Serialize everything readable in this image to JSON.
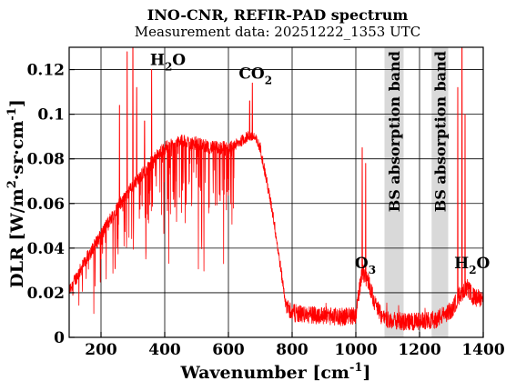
{
  "chart_data": {
    "type": "line",
    "title": "INO-CNR, REFIR-PAD spectrum",
    "subtitle": "Measurement data: 20251222_1353 UTC",
    "xlabel": "Wavenumber [cm",
    "xlabel_sup": "-1",
    "xlabel_end": "]",
    "ylabel": "DLR [W/m",
    "ylabel_sup1": "2",
    "ylabel_mid": "·sr·cm",
    "ylabel_sup2": "-1",
    "ylabel_end": "]",
    "xlim": [
      100,
      1400
    ],
    "ylim": [
      0,
      0.13
    ],
    "grid": true,
    "x_ticks": [
      200,
      400,
      600,
      800,
      1000,
      1200,
      1400
    ],
    "y_ticks": [
      0,
      0.02,
      0.04,
      0.06,
      0.08,
      0.1,
      0.12
    ],
    "y_tick_labels": [
      "0",
      "0.02",
      "0.04",
      "0.06",
      "0.08",
      "0.1",
      "0.12"
    ],
    "series": [
      {
        "color": "#ff0000",
        "envelope": [
          [
            100,
            0.021
          ],
          [
            150,
            0.034
          ],
          [
            200,
            0.046
          ],
          [
            250,
            0.058
          ],
          [
            300,
            0.068
          ],
          [
            350,
            0.077
          ],
          [
            400,
            0.085
          ],
          [
            450,
            0.088
          ],
          [
            500,
            0.087
          ],
          [
            550,
            0.085
          ],
          [
            600,
            0.085
          ],
          [
            620,
            0.086
          ],
          [
            640,
            0.088
          ],
          [
            660,
            0.09
          ],
          [
            680,
            0.09
          ],
          [
            700,
            0.085
          ],
          [
            720,
            0.07
          ],
          [
            740,
            0.055
          ],
          [
            760,
            0.035
          ],
          [
            780,
            0.015
          ],
          [
            800,
            0.011
          ],
          [
            850,
            0.01
          ],
          [
            900,
            0.01
          ],
          [
            950,
            0.009
          ],
          [
            1000,
            0.01
          ],
          [
            1020,
            0.03
          ],
          [
            1040,
            0.025
          ],
          [
            1060,
            0.015
          ],
          [
            1080,
            0.01
          ],
          [
            1100,
            0.008
          ],
          [
            1150,
            0.007
          ],
          [
            1200,
            0.007
          ],
          [
            1250,
            0.008
          ],
          [
            1300,
            0.012
          ],
          [
            1330,
            0.02
          ],
          [
            1350,
            0.022
          ],
          [
            1370,
            0.018
          ],
          [
            1400,
            0.017
          ]
        ],
        "spikes": [
          [
            258,
            0.104
          ],
          [
            282,
            0.128
          ],
          [
            300,
            0.137
          ],
          [
            312,
            0.112
          ],
          [
            337,
            0.097
          ],
          [
            359,
            0.12
          ],
          [
            667,
            0.106
          ],
          [
            675,
            0.114
          ],
          [
            1020,
            0.085
          ],
          [
            1031,
            0.078
          ],
          [
            1320,
            0.112
          ],
          [
            1333,
            0.13
          ],
          [
            1343,
            0.1
          ]
        ]
      }
    ],
    "absorption_bands": [
      {
        "x_start": 1090,
        "x_end": 1150,
        "label": "BS absorption band"
      },
      {
        "x_start": 1238,
        "x_end": 1290,
        "label": "BS absorption band"
      }
    ],
    "annotations": [
      {
        "base": "H",
        "sub": "2",
        "rest": "O",
        "x": 410,
        "y": 0.122
      },
      {
        "base": "CO",
        "sub": "2",
        "rest": "",
        "x": 685,
        "y": 0.116
      },
      {
        "base": "O",
        "sub": "3",
        "rest": "",
        "x": 1030,
        "y": 0.031
      },
      {
        "base": "H",
        "sub": "2",
        "rest": "O",
        "x": 1365,
        "y": 0.031
      }
    ]
  }
}
